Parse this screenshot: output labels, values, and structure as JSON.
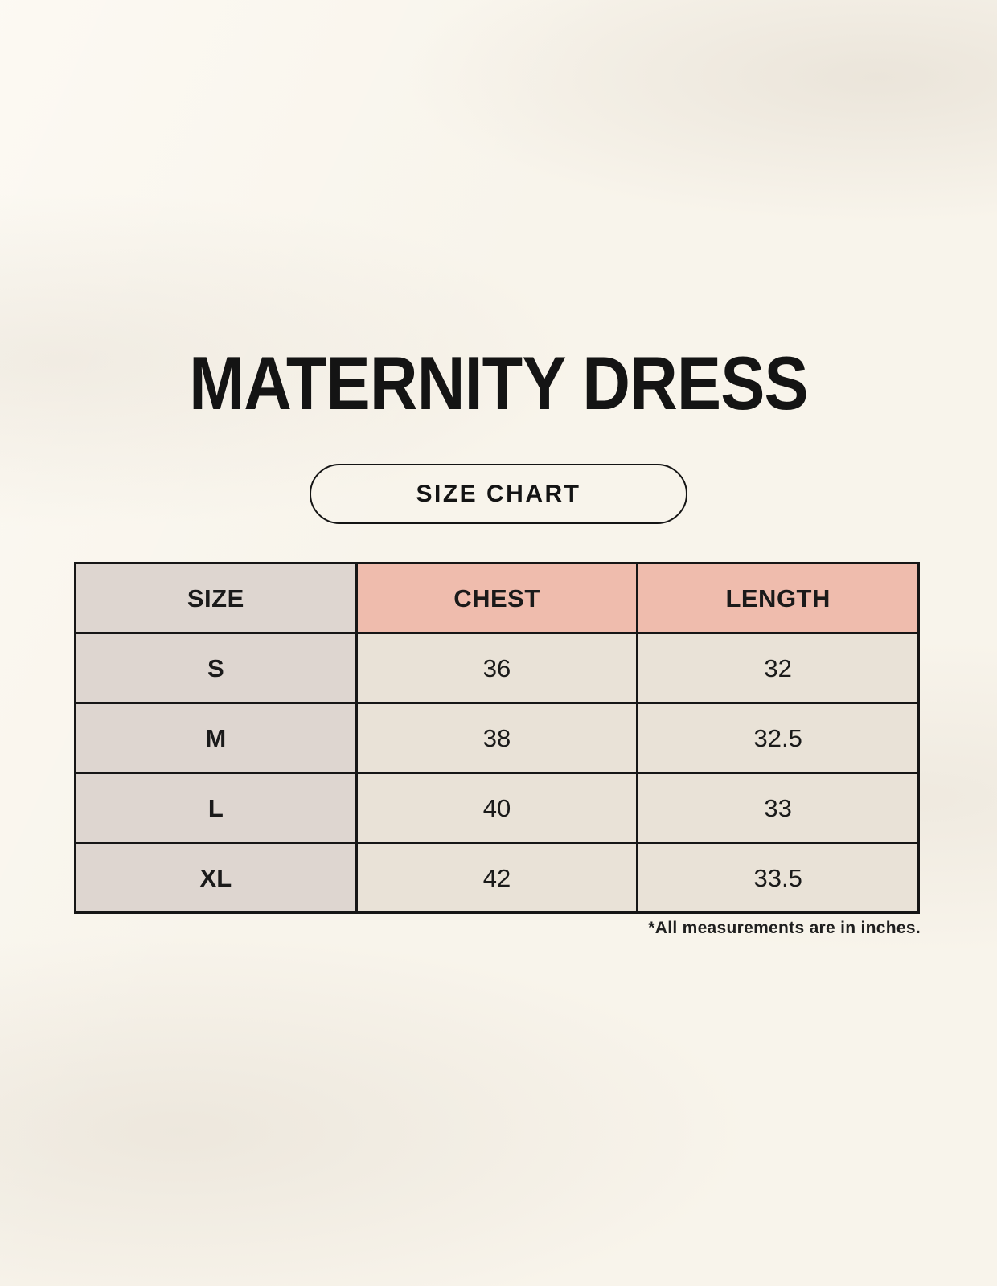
{
  "header": {
    "title": "MATERNITY DRESS",
    "badge_label": "SIZE CHART"
  },
  "size_chart": {
    "unit": "inches",
    "columns": [
      "SIZE",
      "CHEST",
      "LENGTH"
    ],
    "rows": [
      {
        "size": "S",
        "chest": "36",
        "length": "32"
      },
      {
        "size": "M",
        "chest": "38",
        "length": "32.5"
      },
      {
        "size": "L",
        "chest": "40",
        "length": "33"
      },
      {
        "size": "XL",
        "chest": "42",
        "length": "33.5"
      }
    ]
  },
  "footnote": {
    "text": "*All measurements are in inches."
  },
  "colors": {
    "page_background": "#f8f4eb",
    "header_accent": "#efbcad",
    "label_column": "#ded6d0",
    "data_cell": "#e9e2d7",
    "border": "#161616",
    "text": "#1a1a1a"
  }
}
